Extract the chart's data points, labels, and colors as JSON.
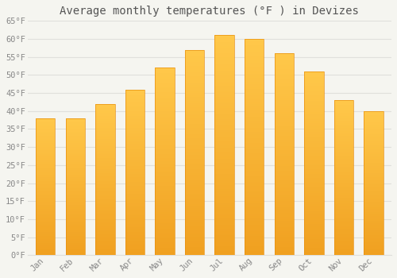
{
  "title": "Average monthly temperatures (°F ) in Devizes",
  "months": [
    "Jan",
    "Feb",
    "Mar",
    "Apr",
    "May",
    "Jun",
    "Jul",
    "Aug",
    "Sep",
    "Oct",
    "Nov",
    "Dec"
  ],
  "values": [
    38,
    38,
    42,
    46,
    52,
    57,
    61,
    60,
    56,
    51,
    43,
    40
  ],
  "bar_color_top": "#FFC84A",
  "bar_color_bottom": "#F0A020",
  "bar_edge_color": "#E89010",
  "background_color": "#F5F5F0",
  "grid_color": "#E0E0DC",
  "text_color": "#888888",
  "title_color": "#555555",
  "ylim": [
    0,
    65
  ],
  "yticks": [
    0,
    5,
    10,
    15,
    20,
    25,
    30,
    35,
    40,
    45,
    50,
    55,
    60,
    65
  ],
  "title_fontsize": 10,
  "tick_fontsize": 7.5,
  "font_family": "monospace",
  "bar_width": 0.65
}
